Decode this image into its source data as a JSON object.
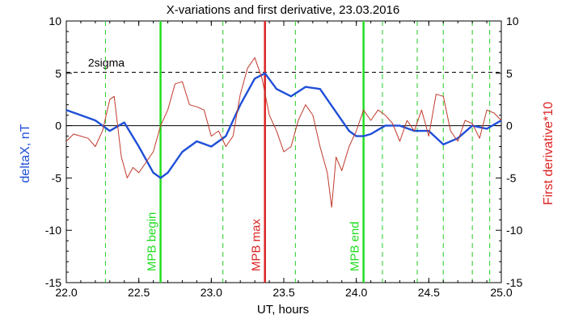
{
  "chart_data": {
    "type": "line",
    "title": "X-variations and first derivative, 23.03.2016",
    "xlabel": "UT, hours",
    "ylabel_left": "deltaX, nT",
    "ylabel_right": "First derivative*10",
    "xlim": [
      22.0,
      25.0
    ],
    "ylim": [
      -15,
      10
    ],
    "x_ticks": [
      "22.0",
      "22.5",
      "23.0",
      "23.5",
      "24.0",
      "24.5",
      "25.0"
    ],
    "y_ticks_left": [
      "10",
      "5",
      "0",
      "-5",
      "-10",
      "-15"
    ],
    "y_ticks_right": [
      "10",
      "5",
      "0",
      "-5",
      "-10",
      "-15"
    ],
    "threshold": {
      "label": "2sigma",
      "value": 5.1
    },
    "series": [
      {
        "name": "deltaX, nT",
        "color": "#1f4fd8",
        "x": [
          22.0,
          22.1,
          22.2,
          22.3,
          22.4,
          22.5,
          22.6,
          22.65,
          22.7,
          22.8,
          22.9,
          23.0,
          23.1,
          23.2,
          23.3,
          23.37,
          23.45,
          23.55,
          23.65,
          23.75,
          23.85,
          23.95,
          24.0,
          24.05,
          24.1,
          24.2,
          24.3,
          24.4,
          24.5,
          24.6,
          24.7,
          24.8,
          24.9,
          25.0
        ],
        "values": [
          1.5,
          1.0,
          0.5,
          -0.5,
          0.3,
          -2.0,
          -4.5,
          -5.0,
          -4.5,
          -2.5,
          -1.5,
          -2.0,
          -1.0,
          2.0,
          4.5,
          5.0,
          3.5,
          2.8,
          3.7,
          3.5,
          1.5,
          -0.5,
          -1.0,
          -1.0,
          -0.8,
          0.0,
          0.0,
          -0.5,
          -0.5,
          -1.8,
          -1.2,
          0.0,
          -0.3,
          0.5
        ]
      },
      {
        "name": "First derivative*10",
        "color": "#c0392b",
        "x": [
          22.0,
          22.05,
          22.1,
          22.15,
          22.2,
          22.25,
          22.3,
          22.33,
          22.38,
          22.42,
          22.46,
          22.5,
          22.55,
          22.6,
          22.65,
          22.7,
          22.75,
          22.8,
          22.85,
          22.9,
          22.95,
          23.0,
          23.05,
          23.1,
          23.15,
          23.2,
          23.25,
          23.3,
          23.35,
          23.4,
          23.45,
          23.5,
          23.55,
          23.6,
          23.65,
          23.7,
          23.75,
          23.8,
          23.83,
          23.86,
          23.9,
          23.95,
          24.0,
          24.05,
          24.1,
          24.15,
          24.2,
          24.25,
          24.3,
          24.35,
          24.4,
          24.45,
          24.5,
          24.55,
          24.6,
          24.65,
          24.7,
          24.75,
          24.8,
          24.85,
          24.9,
          24.95,
          25.0
        ],
        "values": [
          -1.5,
          -0.8,
          -1.0,
          -1.2,
          -2.0,
          -0.5,
          2.5,
          2.8,
          -3.0,
          -5.0,
          -4.0,
          -4.5,
          -3.5,
          -2.5,
          0.0,
          1.5,
          4.0,
          4.2,
          2.0,
          1.8,
          1.5,
          -1.0,
          -0.5,
          -2.0,
          -1.0,
          3.0,
          5.5,
          6.5,
          4.5,
          1.0,
          -0.5,
          -2.5,
          -2.0,
          0.5,
          2.0,
          1.0,
          -2.0,
          -4.5,
          -7.8,
          -3.0,
          -4.3,
          -2.0,
          -0.5,
          1.5,
          0.5,
          1.5,
          1.0,
          0.2,
          -1.5,
          0.5,
          -0.5,
          1.5,
          -1.0,
          3.0,
          2.8,
          -0.5,
          -1.5,
          0.5,
          0.2,
          -1.2,
          1.5,
          1.2,
          0.5
        ]
      }
    ],
    "markers_green_dashed": [
      22.27,
      23.08,
      23.58,
      24.18,
      24.42,
      24.6,
      24.8,
      24.92
    ],
    "marker_mpb_begin": {
      "x": 22.65,
      "label": "MPB begin",
      "color": "#22dd22"
    },
    "marker_mpb_max": {
      "x": 23.37,
      "label": "MPB max",
      "color": "#dd2222"
    },
    "marker_mpb_end": {
      "x": 24.05,
      "label": "MPB end",
      "color": "#22dd22"
    },
    "left_label_color": "#1f4fd8",
    "right_label_color": "#dd2222",
    "grid": false,
    "legend": "none"
  }
}
